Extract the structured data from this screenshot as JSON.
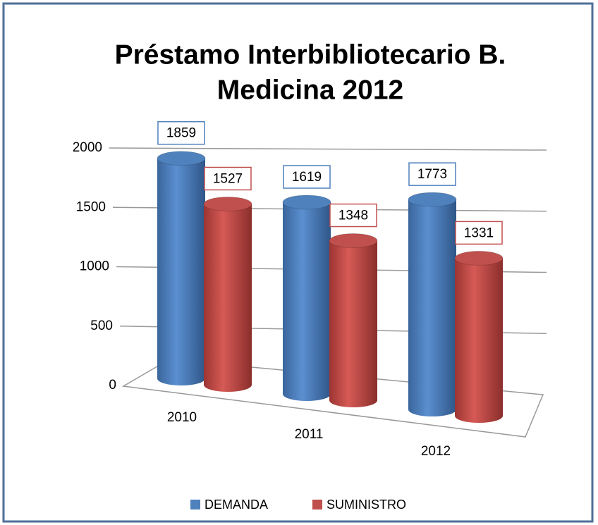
{
  "chart_data": {
    "type": "bar3d",
    "title": [
      "Préstamo Interbibliotecario  B.",
      "Medicina 2012"
    ],
    "categories": [
      "2010",
      "2011",
      "2012"
    ],
    "series": [
      {
        "name": "DEMANDA",
        "color": "#4f81bd",
        "values": [
          1859,
          1619,
          1773
        ]
      },
      {
        "name": "SUMINISTRO",
        "color": "#c0504d",
        "values": [
          1527,
          1348,
          1331
        ]
      }
    ],
    "ylim": [
      0,
      2000
    ],
    "yticks": [
      0,
      500,
      1000,
      1500,
      2000
    ],
    "grid": true,
    "legend": "bottom"
  }
}
